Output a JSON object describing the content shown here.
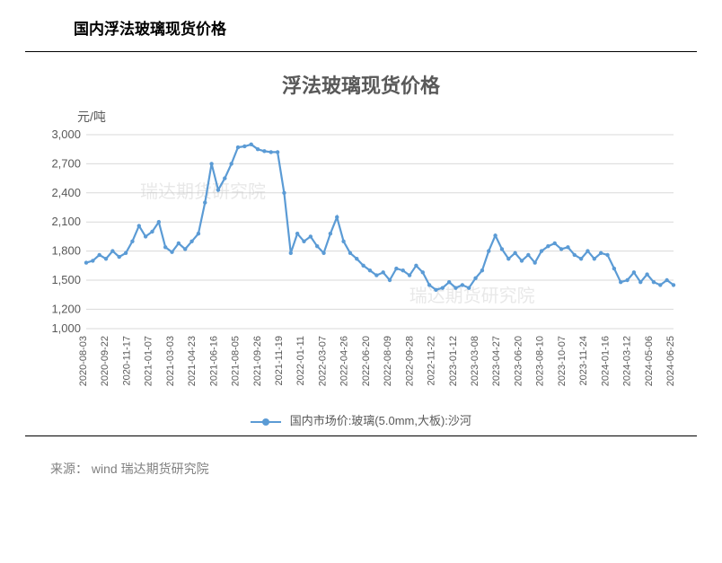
{
  "header_text": "国内浮法玻璃现货价格",
  "chart": {
    "type": "line",
    "title": "浮法玻璃现货价格",
    "title_fontsize": 22,
    "title_color": "#595959",
    "y_unit": "元/吨",
    "y_unit_fontsize": 14,
    "ylim": [
      1000,
      3000
    ],
    "ytick_step": 300,
    "yticks": [
      1000,
      1200,
      1500,
      1800,
      2100,
      2400,
      2700,
      3000
    ],
    "series_color": "#5b9bd5",
    "grid_color": "#d9d9d9",
    "background_color": "#ffffff",
    "axis_text_color": "#595959",
    "line_width": 2.2,
    "marker_radius": 2.2,
    "x_labels": [
      "2020-08-03",
      "2020-09-22",
      "2020-11-17",
      "2021-01-07",
      "2021-03-03",
      "2021-04-23",
      "2021-06-16",
      "2021-08-05",
      "2021-09-26",
      "2021-11-19",
      "2022-01-11",
      "2022-03-07",
      "2022-04-26",
      "2022-06-20",
      "2022-08-09",
      "2022-09-28",
      "2022-11-22",
      "2023-01-12",
      "2023-03-08",
      "2023-04-27",
      "2023-06-20",
      "2023-08-10",
      "2023-10-07",
      "2023-11-24",
      "2024-01-16",
      "2024-03-12",
      "2024-05-06",
      "2024-06-25"
    ],
    "values": [
      1680,
      1700,
      1760,
      1720,
      1800,
      1740,
      1780,
      1900,
      2060,
      1950,
      2000,
      2100,
      1840,
      1790,
      1880,
      1820,
      1900,
      1980,
      2300,
      2700,
      2430,
      2550,
      2700,
      2870,
      2880,
      2900,
      2850,
      2830,
      2820,
      2820,
      2400,
      1780,
      1980,
      1900,
      1950,
      1850,
      1780,
      1980,
      2150,
      1900,
      1780,
      1720,
      1650,
      1600,
      1550,
      1580,
      1500,
      1620,
      1600,
      1550,
      1650,
      1580,
      1450,
      1400,
      1420,
      1480,
      1420,
      1450,
      1420,
      1520,
      1600,
      1800,
      1960,
      1820,
      1720,
      1780,
      1700,
      1760,
      1680,
      1800,
      1850,
      1880,
      1820,
      1840,
      1760,
      1720,
      1800,
      1720,
      1780,
      1760,
      1620,
      1480,
      1500,
      1580,
      1480,
      1560,
      1480,
      1450,
      1500,
      1450
    ],
    "legend_label": "国内市场价:玻璃(5.0mm,大板):沙河",
    "watermark_text": "瑞达期货研究院",
    "watermark_color": "#bfbfbf"
  },
  "footer": {
    "label": "来源：",
    "sources": "wind   瑞达期货研究院"
  }
}
